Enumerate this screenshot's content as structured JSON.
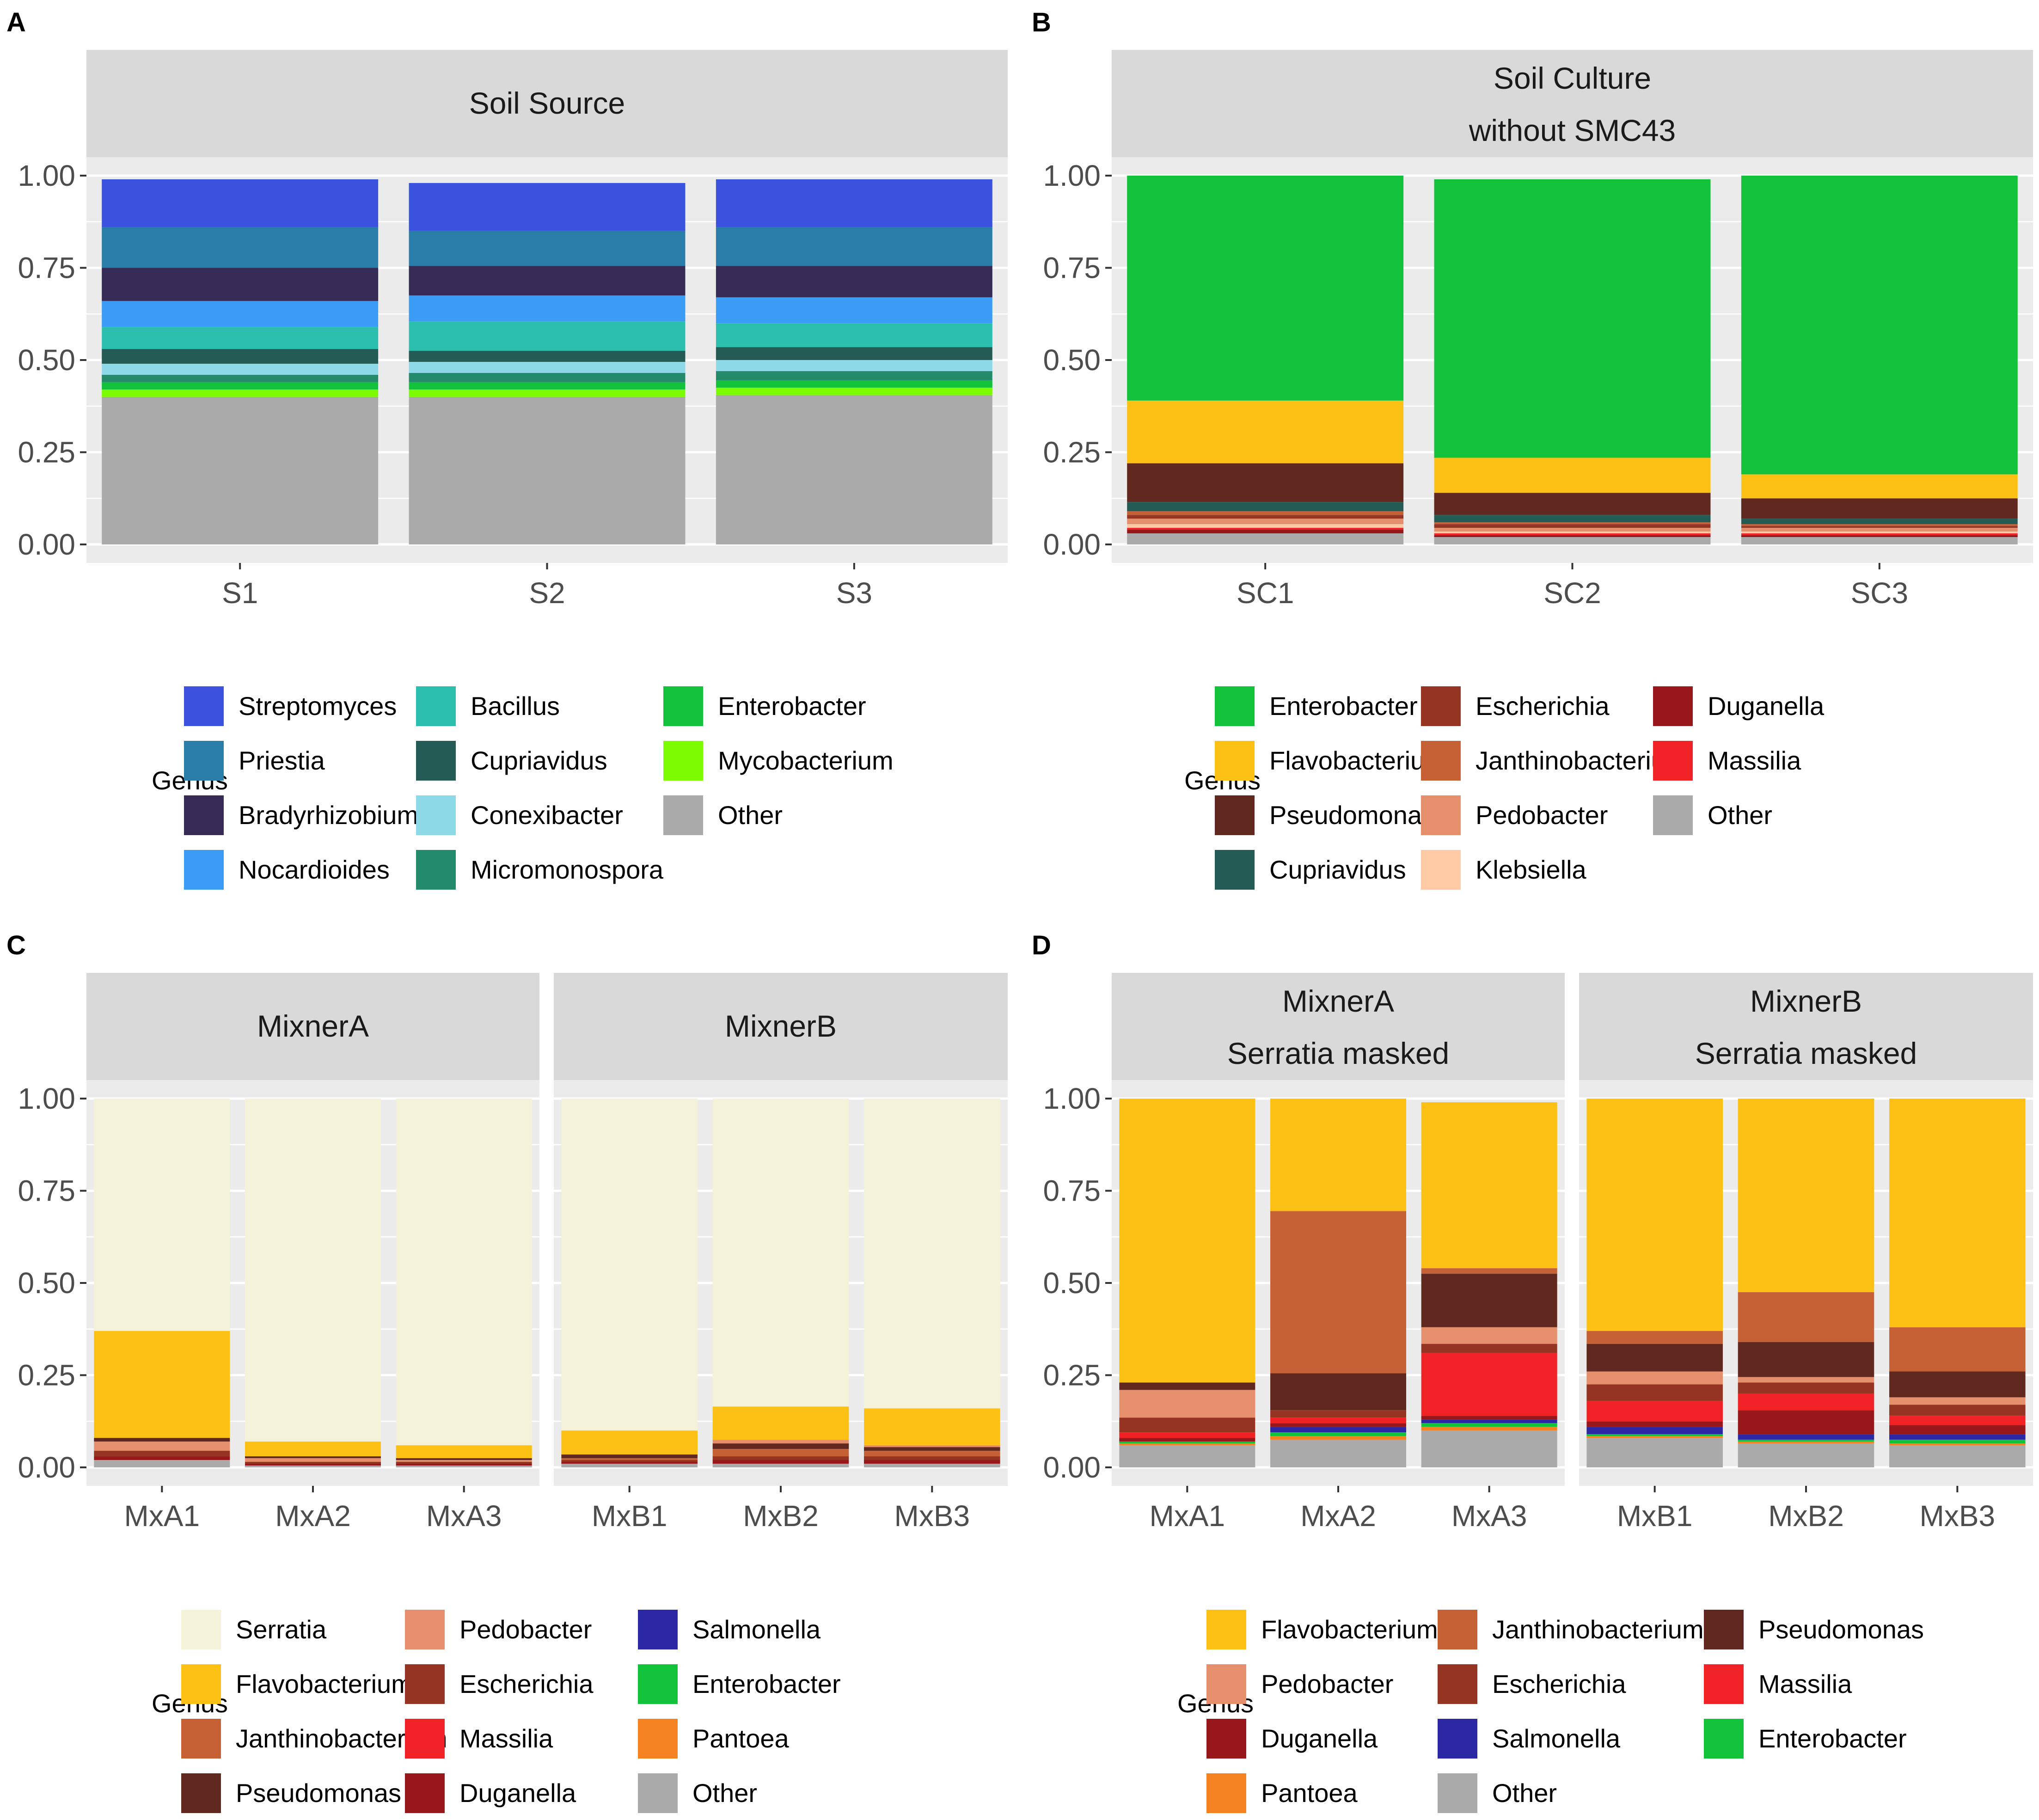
{
  "chart_data": [
    {
      "panel_label": "A",
      "type": "bar",
      "stacked": true,
      "ylim": [
        0,
        1
      ],
      "yticks": [
        "1.00",
        "0.75",
        "0.50",
        "0.25",
        "0.00"
      ],
      "facets": [
        {
          "titles": [
            "Soil Source"
          ],
          "categories": [
            "S1",
            "S2",
            "S3"
          ],
          "series": [
            {
              "name": "Other",
              "values": [
                0.4,
                0.4,
                0.405
              ]
            },
            {
              "name": "Mycobacterium",
              "values": [
                0.02,
                0.02,
                0.02
              ]
            },
            {
              "name": "Enterobacter",
              "values": [
                0.02,
                0.02,
                0.02
              ]
            },
            {
              "name": "Micromonospora",
              "values": [
                0.02,
                0.025,
                0.025
              ]
            },
            {
              "name": "Conexibacter",
              "values": [
                0.03,
                0.03,
                0.03
              ]
            },
            {
              "name": "Cupriavidus",
              "values": [
                0.04,
                0.03,
                0.035
              ]
            },
            {
              "name": "Bacillus",
              "values": [
                0.06,
                0.08,
                0.065
              ]
            },
            {
              "name": "Nocardioides",
              "values": [
                0.07,
                0.07,
                0.07
              ]
            },
            {
              "name": "Bradyrhizobium",
              "values": [
                0.09,
                0.08,
                0.085
              ]
            },
            {
              "name": "Priestia",
              "values": [
                0.11,
                0.095,
                0.105
              ]
            },
            {
              "name": "Streptomyces",
              "values": [
                0.13,
                0.13,
                0.13
              ]
            }
          ]
        }
      ],
      "legend": {
        "title": "Genus",
        "entries": [
          {
            "name": "Streptomyces",
            "color": "#3a52dd"
          },
          {
            "name": "Priestia",
            "color": "#2a7da8"
          },
          {
            "name": "Bradyrhizobium",
            "color": "#352b55"
          },
          {
            "name": "Nocardioides",
            "color": "#3a9cf5"
          },
          {
            "name": "Bacillus",
            "color": "#2cbfae"
          },
          {
            "name": "Cupriavidus",
            "color": "#245c55"
          },
          {
            "name": "Conexibacter",
            "color": "#8ed9e8"
          },
          {
            "name": "Micromonospora",
            "color": "#238a6b"
          },
          {
            "name": "Enterobacter",
            "color": "#12c23a"
          },
          {
            "name": "Mycobacterium",
            "color": "#7cfc00"
          },
          {
            "name": "Other",
            "color": "#aaaaaa"
          }
        ]
      }
    },
    {
      "panel_label": "B",
      "type": "bar",
      "stacked": true,
      "ylim": [
        0,
        1
      ],
      "yticks": [
        "1.00",
        "0.75",
        "0.50",
        "0.25",
        "0.00"
      ],
      "facets": [
        {
          "titles": [
            "Soil Culture",
            "without SMC43"
          ],
          "categories": [
            "SC1",
            "SC2",
            "SC3"
          ],
          "series": [
            {
              "name": "Other",
              "values": [
                0.03,
                0.02,
                0.02
              ]
            },
            {
              "name": "Duganella",
              "values": [
                0.01,
                0.005,
                0.005
              ]
            },
            {
              "name": "Massilia",
              "values": [
                0.005,
                0.005,
                0.005
              ]
            },
            {
              "name": "Klebsiella",
              "values": [
                0.01,
                0.005,
                0.005
              ]
            },
            {
              "name": "Pedobacter",
              "values": [
                0.015,
                0.01,
                0.01
              ]
            },
            {
              "name": "Escherichia",
              "values": [
                0.01,
                0.01,
                0.005
              ]
            },
            {
              "name": "Janthinobacterium",
              "values": [
                0.01,
                0.005,
                0.005
              ]
            },
            {
              "name": "Cupriavidus",
              "values": [
                0.025,
                0.02,
                0.015
              ]
            },
            {
              "name": "Pseudomonas",
              "values": [
                0.105,
                0.06,
                0.055
              ]
            },
            {
              "name": "Flavobacterium",
              "values": [
                0.17,
                0.095,
                0.065
              ]
            },
            {
              "name": "Enterobacter",
              "values": [
                0.61,
                0.755,
                0.81
              ]
            }
          ]
        }
      ],
      "legend": {
        "title": "Genus",
        "entries": [
          {
            "name": "Enterobacter",
            "color": "#12c23a"
          },
          {
            "name": "Flavobacterium",
            "color": "#fdc116"
          },
          {
            "name": "Pseudomonas",
            "color": "#60281e"
          },
          {
            "name": "Cupriavidus",
            "color": "#245c55"
          },
          {
            "name": "Escherichia",
            "color": "#953423"
          },
          {
            "name": "Janthinobacterium",
            "color": "#c56135"
          },
          {
            "name": "Pedobacter",
            "color": "#e58f6c"
          },
          {
            "name": "Klebsiella",
            "color": "#fdcaa5"
          },
          {
            "name": "Duganella",
            "color": "#98171a"
          },
          {
            "name": "Massilia",
            "color": "#f02226"
          },
          {
            "name": "Other",
            "color": "#aaaaaa"
          }
        ]
      }
    },
    {
      "panel_label": "C",
      "type": "bar",
      "stacked": true,
      "ylim": [
        0,
        1
      ],
      "yticks": [
        "1.00",
        "0.75",
        "0.50",
        "0.25",
        "0.00"
      ],
      "facets": [
        {
          "titles": [
            "MixnerA"
          ],
          "categories": [
            "MxA1",
            "MxA2",
            "MxA3"
          ],
          "series": [
            {
              "name": "Other",
              "values": [
                0.02,
                0.005,
                0.005
              ]
            },
            {
              "name": "Duganella",
              "values": [
                0.01,
                0.005,
                0.005
              ]
            },
            {
              "name": "Escherichia",
              "values": [
                0.015,
                0.005,
                0.005
              ]
            },
            {
              "name": "Pedobacter",
              "values": [
                0.025,
                0.01,
                0.005
              ]
            },
            {
              "name": "Pseudomonas",
              "values": [
                0.01,
                0.005,
                0.005
              ]
            },
            {
              "name": "Flavobacterium",
              "values": [
                0.29,
                0.04,
                0.035
              ]
            },
            {
              "name": "Serratia",
              "values": [
                0.63,
                0.93,
                0.94
              ]
            }
          ]
        },
        {
          "titles": [
            "MixnerB"
          ],
          "categories": [
            "MxB1",
            "MxB2",
            "MxB3"
          ],
          "series": [
            {
              "name": "Other",
              "values": [
                0.01,
                0.01,
                0.01
              ]
            },
            {
              "name": "Duganella",
              "values": [
                0.005,
                0.01,
                0.01
              ]
            },
            {
              "name": "Escherichia",
              "values": [
                0.005,
                0.01,
                0.01
              ]
            },
            {
              "name": "Janthinobacterium",
              "values": [
                0.005,
                0.02,
                0.015
              ]
            },
            {
              "name": "Pseudomonas",
              "values": [
                0.01,
                0.015,
                0.01
              ]
            },
            {
              "name": "Pedobacter",
              "values": [
                0.0,
                0.01,
                0.005
              ]
            },
            {
              "name": "Flavobacterium",
              "values": [
                0.065,
                0.09,
                0.1
              ]
            },
            {
              "name": "Serratia",
              "values": [
                0.9,
                0.835,
                0.84
              ]
            }
          ]
        }
      ],
      "legend": {
        "title": "Genus",
        "entries": [
          {
            "name": "Serratia",
            "color": "#f4f2d9"
          },
          {
            "name": "Flavobacterium",
            "color": "#fdc116"
          },
          {
            "name": "Janthinobacterium",
            "color": "#c56135"
          },
          {
            "name": "Pseudomonas",
            "color": "#60281e"
          },
          {
            "name": "Pedobacter",
            "color": "#e58f6c"
          },
          {
            "name": "Escherichia",
            "color": "#953423"
          },
          {
            "name": "Massilia",
            "color": "#f02226"
          },
          {
            "name": "Duganella",
            "color": "#98171a"
          },
          {
            "name": "Salmonella",
            "color": "#2c27a2"
          },
          {
            "name": "Enterobacter",
            "color": "#12c23a"
          },
          {
            "name": "Pantoea",
            "color": "#f58220"
          },
          {
            "name": "Other",
            "color": "#aaaaaa"
          }
        ]
      }
    },
    {
      "panel_label": "D",
      "type": "bar",
      "stacked": true,
      "ylim": [
        0,
        1
      ],
      "yticks": [
        "1.00",
        "0.75",
        "0.50",
        "0.25",
        "0.00"
      ],
      "facets": [
        {
          "titles": [
            "MixnerA",
            "Serratia masked"
          ],
          "categories": [
            "MxA1",
            "MxA2",
            "MxA3"
          ],
          "series": [
            {
              "name": "Other",
              "values": [
                0.06,
                0.075,
                0.1
              ]
            },
            {
              "name": "Pantoea",
              "values": [
                0.005,
                0.01,
                0.01
              ]
            },
            {
              "name": "Enterobacter",
              "values": [
                0.005,
                0.01,
                0.01
              ]
            },
            {
              "name": "Salmonella",
              "values": [
                0.0,
                0.015,
                0.01
              ]
            },
            {
              "name": "Duganella",
              "values": [
                0.01,
                0.01,
                0.01
              ]
            },
            {
              "name": "Massilia",
              "values": [
                0.015,
                0.015,
                0.17
              ]
            },
            {
              "name": "Escherichia",
              "values": [
                0.04,
                0.02,
                0.025
              ]
            },
            {
              "name": "Pedobacter",
              "values": [
                0.075,
                0.0,
                0.045
              ]
            },
            {
              "name": "Pseudomonas",
              "values": [
                0.02,
                0.1,
                0.145
              ]
            },
            {
              "name": "Janthinobacterium",
              "values": [
                0.0,
                0.44,
                0.015
              ]
            },
            {
              "name": "Flavobacterium",
              "values": [
                0.77,
                0.305,
                0.45
              ]
            }
          ]
        },
        {
          "titles": [
            "MixnerB",
            "Serratia masked"
          ],
          "categories": [
            "MxB1",
            "MxB2",
            "MxB3"
          ],
          "series": [
            {
              "name": "Other",
              "values": [
                0.08,
                0.065,
                0.06
              ]
            },
            {
              "name": "Pantoea",
              "values": [
                0.005,
                0.005,
                0.005
              ]
            },
            {
              "name": "Enterobacter",
              "values": [
                0.005,
                0.005,
                0.01
              ]
            },
            {
              "name": "Salmonella",
              "values": [
                0.02,
                0.015,
                0.015
              ]
            },
            {
              "name": "Duganella",
              "values": [
                0.015,
                0.065,
                0.025
              ]
            },
            {
              "name": "Massilia",
              "values": [
                0.055,
                0.045,
                0.025
              ]
            },
            {
              "name": "Escherichia",
              "values": [
                0.045,
                0.03,
                0.03
              ]
            },
            {
              "name": "Pedobacter",
              "values": [
                0.035,
                0.015,
                0.02
              ]
            },
            {
              "name": "Pseudomonas",
              "values": [
                0.075,
                0.095,
                0.07
              ]
            },
            {
              "name": "Janthinobacterium",
              "values": [
                0.035,
                0.135,
                0.12
              ]
            },
            {
              "name": "Flavobacterium",
              "values": [
                0.63,
                0.525,
                0.62
              ]
            }
          ]
        }
      ],
      "legend": {
        "title": "Genus",
        "entries": [
          {
            "name": "Flavobacterium",
            "color": "#fdc116"
          },
          {
            "name": "Pedobacter",
            "color": "#e58f6c"
          },
          {
            "name": "Duganella",
            "color": "#98171a"
          },
          {
            "name": "Pantoea",
            "color": "#f58220"
          },
          {
            "name": "Janthinobacterium",
            "color": "#c56135"
          },
          {
            "name": "Escherichia",
            "color": "#953423"
          },
          {
            "name": "Salmonella",
            "color": "#2c27a2"
          },
          {
            "name": "Other",
            "color": "#aaaaaa"
          },
          {
            "name": "Pseudomonas",
            "color": "#60281e"
          },
          {
            "name": "Massilia",
            "color": "#f02226"
          },
          {
            "name": "Enterobacter",
            "color": "#12c23a"
          }
        ]
      }
    }
  ]
}
